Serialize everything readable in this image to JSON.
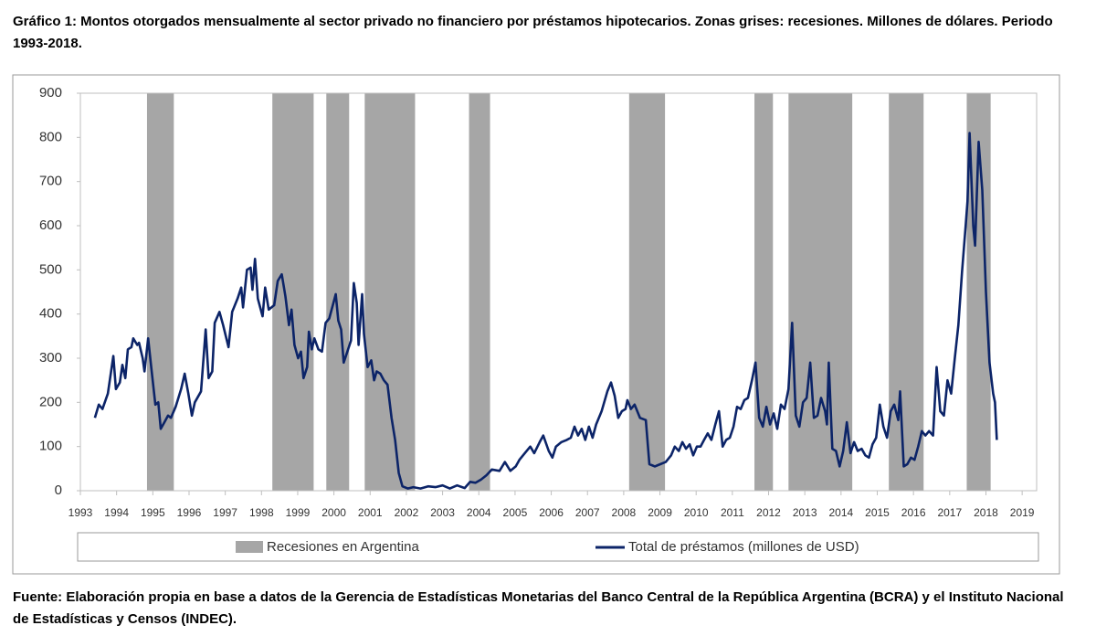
{
  "chart_data": {
    "type": "line",
    "title": "Gráfico 1: Montos otorgados mensualmente al sector privado no financiero por préstamos hipotecarios. Zonas grises: recesiones. Millones de dólares. Periodo 1993-2018.",
    "source": "Fuente: Elaboración propia en base a datos de la Gerencia de Estadísticas Monetarias del Banco Central de la República Argentina (BCRA) y el Instituto Nacional de Estadísticas y Censos (INDEC).",
    "xlim": [
      1993,
      2019.4
    ],
    "ylim": [
      0,
      900
    ],
    "xticks": [
      1993,
      1994,
      1995,
      1996,
      1997,
      1998,
      1999,
      2000,
      2001,
      2002,
      2003,
      2004,
      2005,
      2006,
      2007,
      2008,
      2009,
      2010,
      2011,
      2012,
      2013,
      2014,
      2015,
      2016,
      2017,
      2018,
      2019
    ],
    "yticks": [
      0,
      100,
      200,
      300,
      400,
      500,
      600,
      700,
      800,
      900
    ],
    "recessions": {
      "name": "Recesiones en Argentina",
      "color": "#a6a6a6",
      "ranges": [
        [
          1994.84,
          1995.58
        ],
        [
          1998.3,
          1999.44
        ],
        [
          1999.79,
          2000.42
        ],
        [
          2000.85,
          2002.24
        ],
        [
          2003.73,
          2004.31
        ],
        [
          2008.15,
          2009.14
        ],
        [
          2011.61,
          2012.12
        ],
        [
          2012.55,
          2014.31
        ],
        [
          2015.32,
          2016.28
        ],
        [
          2017.47,
          2018.13
        ]
      ]
    },
    "x": [
      1993.4,
      1993.51,
      1993.61,
      1993.76,
      1993.91,
      1993.98,
      1994.09,
      1994.16,
      1994.24,
      1994.31,
      1994.41,
      1994.46,
      1994.57,
      1994.62,
      1994.72,
      1994.77,
      1994.87,
      1994.97,
      1995.07,
      1995.15,
      1995.22,
      1995.32,
      1995.42,
      1995.5,
      1995.63,
      1995.78,
      1995.88,
      1995.98,
      1996.08,
      1996.16,
      1996.33,
      1996.46,
      1996.54,
      1996.64,
      1996.71,
      1996.84,
      1996.94,
      1997.09,
      1997.19,
      1997.34,
      1997.44,
      1997.49,
      1997.6,
      1997.7,
      1997.75,
      1997.82,
      1997.9,
      1998.03,
      1998.1,
      1998.2,
      1998.35,
      1998.45,
      1998.56,
      1998.66,
      1998.76,
      1998.83,
      1998.91,
      1999.01,
      1999.09,
      1999.16,
      1999.26,
      1999.31,
      1999.39,
      1999.46,
      1999.57,
      1999.67,
      1999.77,
      1999.87,
      1999.97,
      2000.05,
      2000.12,
      2000.2,
      2000.27,
      2000.37,
      2000.47,
      2000.55,
      2000.63,
      2000.68,
      2000.78,
      2000.83,
      2000.93,
      2001.03,
      2001.11,
      2001.18,
      2001.28,
      2001.38,
      2001.48,
      2001.59,
      2001.69,
      2001.79,
      2001.89,
      2002.04,
      2002.19,
      2002.39,
      2002.6,
      2002.8,
      2003.0,
      2003.2,
      2003.4,
      2003.61,
      2003.76,
      2003.91,
      2004.06,
      2004.21,
      2004.36,
      2004.57,
      2004.72,
      2004.87,
      2005.02,
      2005.12,
      2005.27,
      2005.42,
      2005.53,
      2005.68,
      2005.78,
      2005.93,
      2006.03,
      2006.13,
      2006.28,
      2006.43,
      2006.54,
      2006.64,
      2006.74,
      2006.84,
      2006.94,
      2007.04,
      2007.14,
      2007.24,
      2007.39,
      2007.55,
      2007.65,
      2007.75,
      2007.85,
      2007.95,
      2008.05,
      2008.1,
      2008.2,
      2008.3,
      2008.45,
      2008.61,
      2008.71,
      2008.86,
      2009.01,
      2009.16,
      2009.31,
      2009.41,
      2009.52,
      2009.62,
      2009.72,
      2009.82,
      2009.92,
      2010.02,
      2010.12,
      2010.22,
      2010.32,
      2010.42,
      2010.53,
      2010.63,
      2010.73,
      2010.83,
      2010.93,
      2011.03,
      2011.13,
      2011.23,
      2011.33,
      2011.43,
      2011.54,
      2011.64,
      2011.74,
      2011.84,
      2011.94,
      2012.04,
      2012.14,
      2012.24,
      2012.34,
      2012.44,
      2012.55,
      2012.65,
      2012.75,
      2012.85,
      2012.95,
      2013.05,
      2013.15,
      2013.25,
      2013.35,
      2013.45,
      2013.56,
      2013.61,
      2013.66,
      2013.76,
      2013.86,
      2013.96,
      2014.06,
      2014.16,
      2014.26,
      2014.36,
      2014.46,
      2014.57,
      2014.67,
      2014.77,
      2014.87,
      2014.97,
      2015.07,
      2015.17,
      2015.27,
      2015.37,
      2015.47,
      2015.58,
      2015.63,
      2015.73,
      2015.83,
      2015.93,
      2016.03,
      2016.13,
      2016.23,
      2016.33,
      2016.43,
      2016.54,
      2016.64,
      2016.74,
      2016.84,
      2016.94,
      2017.04,
      2017.14,
      2017.24,
      2017.34,
      2017.44,
      2017.49,
      2017.55,
      2017.65,
      2017.7,
      2017.8,
      2017.9,
      2018.0,
      2018.1,
      2018.2,
      2018.25,
      2018.3
    ],
    "series": [
      {
        "name": "Total de préstamos (millones de USD)",
        "color": "#0c2468",
        "values": [
          165,
          195,
          185,
          220,
          305,
          230,
          245,
          285,
          255,
          320,
          325,
          345,
          330,
          335,
          300,
          270,
          345,
          270,
          195,
          200,
          140,
          155,
          170,
          165,
          190,
          230,
          265,
          220,
          170,
          200,
          225,
          365,
          255,
          270,
          380,
          405,
          375,
          325,
          405,
          435,
          460,
          415,
          500,
          505,
          455,
          525,
          435,
          395,
          460,
          410,
          420,
          475,
          490,
          440,
          375,
          410,
          330,
          300,
          315,
          255,
          280,
          360,
          320,
          345,
          320,
          315,
          380,
          390,
          420,
          445,
          385,
          365,
          290,
          315,
          340,
          470,
          425,
          330,
          445,
          355,
          280,
          295,
          250,
          270,
          265,
          250,
          240,
          165,
          115,
          40,
          10,
          5,
          8,
          5,
          10,
          8,
          12,
          5,
          12,
          6,
          20,
          18,
          25,
          35,
          48,
          45,
          65,
          45,
          55,
          70,
          85,
          100,
          85,
          110,
          125,
          90,
          75,
          100,
          110,
          115,
          120,
          145,
          125,
          140,
          115,
          145,
          120,
          150,
          180,
          225,
          245,
          215,
          165,
          180,
          185,
          205,
          185,
          195,
          165,
          160,
          60,
          55,
          60,
          65,
          80,
          100,
          90,
          110,
          95,
          105,
          80,
          100,
          100,
          115,
          130,
          115,
          150,
          180,
          100,
          115,
          120,
          145,
          190,
          185,
          205,
          210,
          250,
          290,
          165,
          145,
          190,
          150,
          175,
          140,
          195,
          185,
          230,
          380,
          170,
          145,
          200,
          210,
          290,
          165,
          170,
          210,
          180,
          150,
          290,
          95,
          90,
          55,
          90,
          155,
          85,
          110,
          90,
          95,
          80,
          75,
          105,
          120,
          195,
          145,
          120,
          180,
          195,
          160,
          225,
          55,
          60,
          75,
          70,
          100,
          135,
          125,
          135,
          125,
          280,
          180,
          170,
          250,
          220,
          300,
          375,
          495,
          600,
          655,
          810,
          600,
          555,
          790,
          680,
          450,
          290,
          220,
          200,
          115
        ]
      }
    ]
  }
}
